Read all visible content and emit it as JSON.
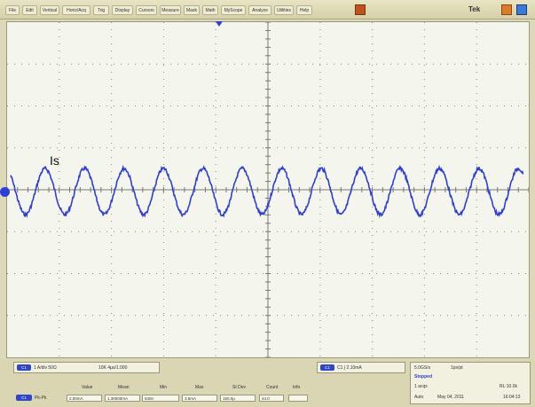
{
  "menu": {
    "items": [
      "File",
      "Edit",
      "Vertical",
      "Horiz/Acq",
      "Trig",
      "Display",
      "Cursors",
      "Measure",
      "Mask",
      "Math",
      "MyScope",
      "Analyze",
      "Utilities",
      "Help"
    ]
  },
  "brand": "Tek",
  "waveform": {
    "label": "Is",
    "color": "#2f3fd6",
    "cycles": 13
  },
  "bottom": {
    "ch1_info": "1 A/div  50Ω",
    "sample_info": "10K  4μs/1.000",
    "trigger": "C1  ∫  2.10mA",
    "status": {
      "sample_rate": "5.0GS/s",
      "record": "1ps/pt",
      "state": "Stopped",
      "acqs": "1 acqs",
      "record_length": "RL:10.0k",
      "mode": "Auto",
      "date": "May 04, 2011",
      "time": "16:04:13"
    },
    "measurements": {
      "headers": [
        "Value",
        "Mean",
        "Min",
        "Max",
        "St Dev",
        "Count",
        "Info"
      ],
      "channel": "Pk-Pk",
      "values": [
        "2.00mA",
        "1.30000mA",
        "540n",
        "3.5mA",
        "150.0μ",
        "44.0",
        ""
      ]
    }
  }
}
